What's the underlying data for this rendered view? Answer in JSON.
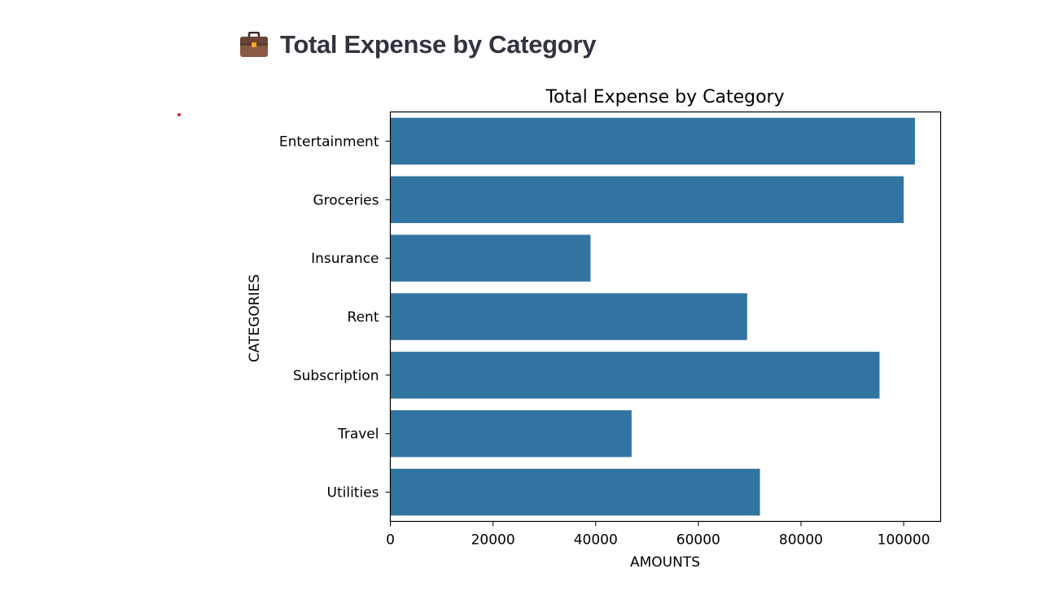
{
  "header": {
    "title": "Total Expense by Category",
    "icon": "briefcase-icon"
  },
  "chart_data": {
    "type": "bar",
    "orientation": "horizontal",
    "title": "Total Expense by Category",
    "xlabel": "AMOUNTS",
    "ylabel": "CATEGORIES",
    "categories": [
      "Entertainment",
      "Groceries",
      "Insurance",
      "Rent",
      "Subscription",
      "Travel",
      "Utilities"
    ],
    "values": [
      102200,
      100000,
      39000,
      69500,
      95300,
      47000,
      72000
    ],
    "xlim": [
      0,
      107200
    ],
    "xticks": [
      0,
      20000,
      40000,
      60000,
      80000,
      100000
    ],
    "xtick_labels": [
      "0",
      "20000",
      "40000",
      "60000",
      "80000",
      "100000"
    ],
    "bar_color": "#3274a1",
    "grid": false
  },
  "colors": {
    "title_text": "#31333f",
    "dot": "#e0262b"
  }
}
